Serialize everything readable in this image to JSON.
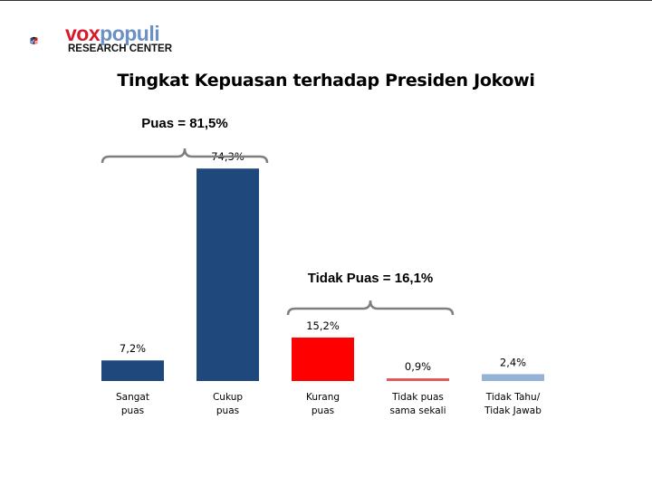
{
  "logo": {
    "word1": "vox",
    "word2": "populi",
    "subtitle": "RESEARCH CENTER"
  },
  "chart_data": {
    "type": "bar",
    "title": "Tingkat Kepuasan terhadap Presiden Jokowi",
    "categories": [
      "Sangat\npuas",
      "Cukup\npuas",
      "Kurang\npuas",
      "Tidak puas\nsama sekali",
      "Tidak Tahu/\nTidak Jawab"
    ],
    "values": [
      7.2,
      74.3,
      15.2,
      0.9,
      2.4
    ],
    "data_labels": [
      "7,2%",
      "74,3%",
      "15,2%",
      "0,9%",
      "2,4%"
    ],
    "colors": [
      "#1F497D",
      "#1F497D",
      "#FF0000",
      "#E05A5A",
      "#95B3D7"
    ],
    "groups": [
      {
        "label": "Puas = 81,5%",
        "categories": [
          0,
          1
        ]
      },
      {
        "label": "Tidak Puas = 16,1%",
        "categories": [
          2,
          3
        ]
      }
    ],
    "grid": false,
    "legend": "none"
  }
}
